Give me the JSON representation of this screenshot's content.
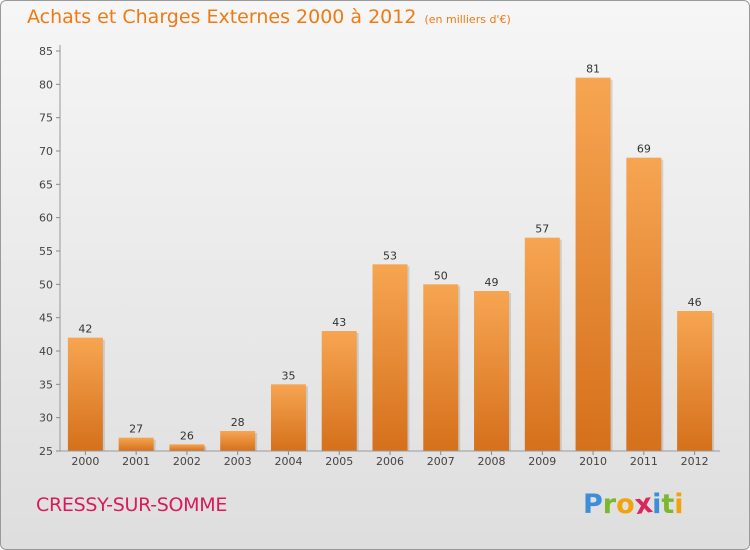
{
  "header": {
    "title": "Achats et Charges Externes 2000 à 2012",
    "unit": "(en milliers d'€)"
  },
  "footer": {
    "location": "CRESSY-SUR-SOMME",
    "logo": {
      "text": "Proxiti",
      "letters": [
        {
          "ch": "P",
          "color": "#3d8ed8"
        },
        {
          "ch": "r",
          "color": "#7cb82f"
        },
        {
          "ch": "o",
          "color": "#f2a20c"
        },
        {
          "ch": "x",
          "color": "#d9265c"
        },
        {
          "ch": "i",
          "color": "#3d8ed8"
        },
        {
          "ch": "t",
          "color": "#7cb82f"
        },
        {
          "ch": "i",
          "color": "#f2a20c"
        }
      ]
    }
  },
  "chart_data": {
    "type": "bar",
    "title": "Achats et Charges Externes 2000 à 2012",
    "subtitle": "(en milliers d'€)",
    "xlabel": "",
    "ylabel": "",
    "categories": [
      "2000",
      "2001",
      "2002",
      "2003",
      "2004",
      "2005",
      "2006",
      "2007",
      "2008",
      "2009",
      "2010",
      "2011",
      "2012"
    ],
    "values": [
      42,
      27,
      26,
      28,
      35,
      43,
      53,
      50,
      49,
      57,
      81,
      69,
      46
    ],
    "ylim": [
      25,
      85
    ],
    "yticks": [
      25,
      30,
      35,
      40,
      45,
      50,
      55,
      60,
      65,
      70,
      75,
      80,
      85
    ],
    "grid": false,
    "legend": "none",
    "bar_color": "#f0901f",
    "title_color": "#f07a12"
  }
}
